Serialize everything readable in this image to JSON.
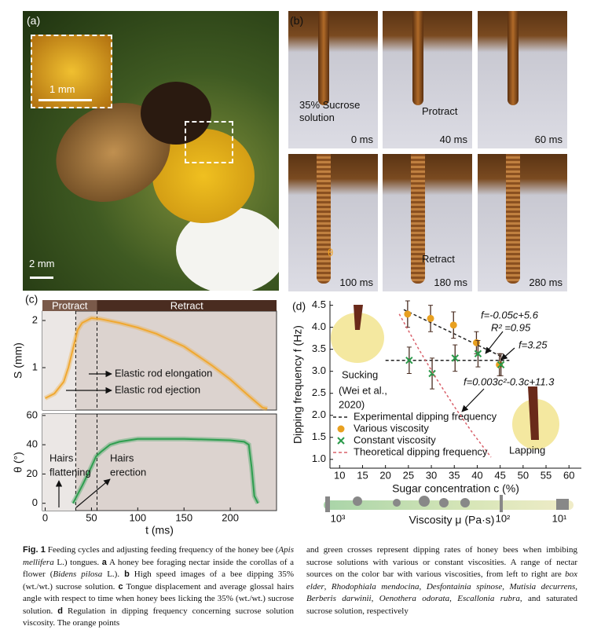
{
  "panel_a": {
    "label": "(a)",
    "inset_scale": "1 mm",
    "scale": "2 mm"
  },
  "panel_b": {
    "label": "(b)",
    "frames": [
      {
        "time": "0 ms",
        "note": "35% Sucrose solution"
      },
      {
        "time": "40 ms",
        "note": "Protract"
      },
      {
        "time": "60 ms"
      },
      {
        "time": "100 ms",
        "note": "θ"
      },
      {
        "time": "180 ms",
        "note": "Retract"
      },
      {
        "time": "280 ms"
      }
    ]
  },
  "panel_c": {
    "label": "(c)"
  },
  "panel_d": {
    "label": "(d)",
    "colorbar": {
      "label": "Viscosity μ (Pa·s)",
      "ticks": [
        "10³",
        "10²",
        "10¹"
      ]
    }
  },
  "chart_data": [
    {
      "type": "line",
      "ylabel": "S (mm)",
      "bands": [
        "Protract",
        "Retract"
      ],
      "annotations": [
        [
          "Elastic rod elongation"
        ],
        [
          "Elastic rod ejection"
        ]
      ],
      "x": [
        0,
        10,
        20,
        25,
        30,
        35,
        40,
        50,
        60,
        80,
        100,
        120,
        150,
        180,
        200,
        220,
        235,
        240
      ],
      "values": [
        0.35,
        0.45,
        0.7,
        1.0,
        1.4,
        1.8,
        1.95,
        2.05,
        2.03,
        1.95,
        1.85,
        1.72,
        1.45,
        1.05,
        0.75,
        0.4,
        0.15,
        0.13
      ],
      "color": "#f0a830",
      "xlim": [
        -3,
        250
      ],
      "ylim": [
        0.1,
        2.2
      ],
      "yticks": [
        1,
        2
      ],
      "vlines": [
        33,
        56
      ]
    },
    {
      "type": "line",
      "ylabel": "θ (°)",
      "xlabel": "t (ms)",
      "annotations": [
        [
          "Hairs",
          "flattening"
        ],
        [
          "Hairs",
          "erection"
        ]
      ],
      "x": [
        30,
        40,
        50,
        55,
        60,
        70,
        80,
        100,
        150,
        200,
        215,
        220,
        223,
        226,
        230
      ],
      "values": [
        0,
        12,
        25,
        32,
        35,
        40,
        42,
        44,
        44,
        43,
        42,
        40,
        25,
        5,
        0
      ],
      "color": "#2e9e4f",
      "xlim": [
        -3,
        250
      ],
      "ylim": [
        -5,
        61
      ],
      "xticks": [
        0,
        50,
        100,
        150,
        200
      ],
      "yticks": [
        0,
        20,
        40,
        60
      ],
      "vlines": [
        33,
        56
      ]
    },
    {
      "type": "scatter",
      "xlabel": "Sugar concentration c (%)",
      "ylabel": "Dipping frequency f (Hz)",
      "annotations": [
        [
          "f=-0.05c+5.6"
        ],
        [
          "R² =0.95"
        ],
        [
          "f=3.25"
        ],
        [
          "f=0.003c²-0.3c+11.3"
        ],
        [
          "Sucking"
        ],
        [
          "(Wei et al.,",
          "2020)"
        ],
        [
          "Lapping"
        ]
      ],
      "xlim": [
        7.9,
        62.7
      ],
      "ylim": [
        0.8,
        4.6
      ],
      "xticks": [
        10,
        15,
        20,
        25,
        30,
        35,
        40,
        45,
        50,
        55,
        60
      ],
      "yticks": [
        {
          "value": 1,
          "label": "1.0"
        },
        1.5,
        {
          "value": 2,
          "label": "2.0"
        },
        2.5,
        {
          "value": 3,
          "label": "3.0"
        },
        3.5,
        {
          "value": 4,
          "label": "4.0"
        },
        4.5
      ],
      "series": [
        {
          "name": "Experimental dipping frequency",
          "color": "#222222",
          "marker": "dashed-line",
          "x": [
            24,
            46,
            null,
            20,
            47
          ],
          "values": [
            4.4,
            3.3,
            null,
            3.25,
            3.25
          ]
        },
        {
          "name": "Various viscosity",
          "color": "#e8a020",
          "marker": "circle",
          "x": [
            25,
            30,
            35,
            40,
            45
          ],
          "values": [
            4.3,
            4.2,
            4.05,
            3.65,
            3.15
          ],
          "errors": [
            0.3,
            0.3,
            0.3,
            0.25,
            0.25
          ]
        },
        {
          "name": "Constant viscosity",
          "color": "#2a9a4a",
          "marker": "cross",
          "x": [
            25,
            30,
            35,
            40,
            45
          ],
          "values": [
            3.25,
            2.95,
            3.3,
            3.4,
            3.15
          ],
          "errors": [
            0.3,
            0.35,
            0.3,
            0.3,
            0.25
          ]
        },
        {
          "name": "Theoretical dipping frequency",
          "color": "#d9606a",
          "marker": "dotted-line",
          "x": [
            23,
            27,
            31,
            35,
            39,
            43
          ],
          "values": [
            4.3,
            3.55,
            2.85,
            2.2,
            1.6,
            1.05
          ]
        }
      ]
    }
  ],
  "caption": {
    "left": [
      "Fig. 1",
      " Feeding cycles and adjusting feeding frequency of the honey bee (",
      "Apis mellifera",
      " L.) tongues. ",
      "a",
      " A honey bee foraging nectar inside the corollas of a flower (",
      "Bidens pilosa",
      " L.). ",
      "b",
      " High speed images of a bee dipping 35% (wt./wt.) sucrose solution. ",
      "c",
      " Tongue displacement and average glossal hairs angle with respect to time when honey bees licking the 35% (wt./wt.) sucrose solution. ",
      "d",
      " Regulation in dipping frequency concerning sucrose solution viscosity. The orange points"
    ],
    "right": [
      "and green crosses represent dipping rates of honey bees when imbibing sucrose solutions with various or constant viscosities. A range of nectar sources on the color bar with various viscosities, from left to right are ",
      "box elder",
      ", ",
      "Rhodophiala mendocina",
      ", ",
      "Desfontainia spinose",
      ", ",
      "Mutisia decurrens",
      ", ",
      "Berberis darwinii",
      ", ",
      "Oenothera odorata",
      ", ",
      "Escallonia rubra",
      ", and saturated sucrose solution, respectively"
    ]
  }
}
